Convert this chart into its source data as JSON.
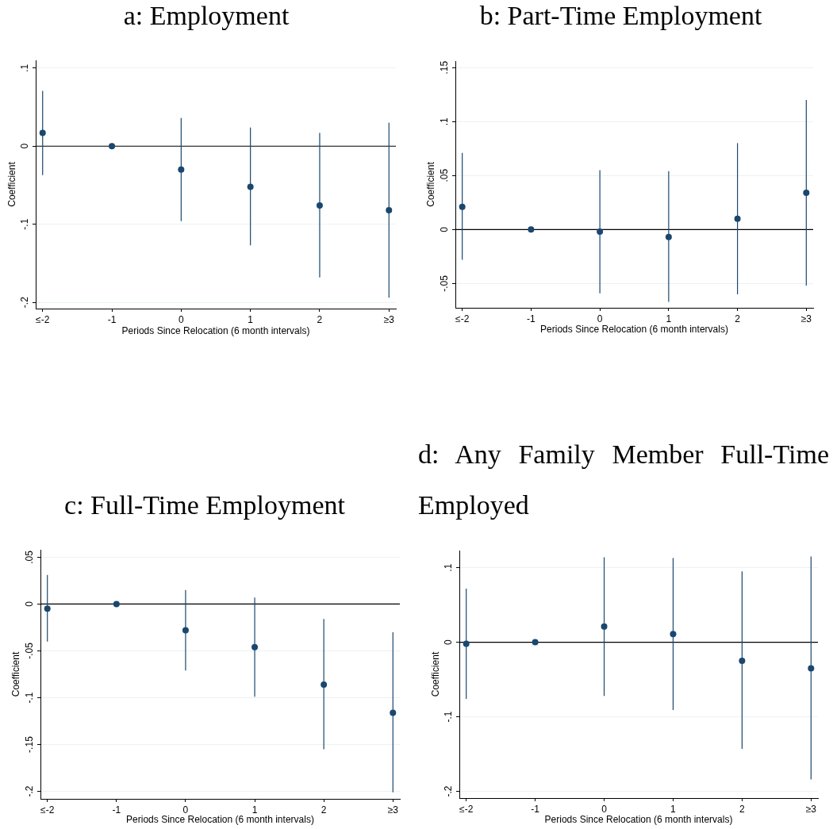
{
  "chart_data": [
    {
      "type": "scatter",
      "title": "a: Employment",
      "xlabel": "Periods Since Relocation (6 month intervals)",
      "ylabel": "Coefficient",
      "categories": [
        "≤-2",
        "-1",
        "0",
        "1",
        "2",
        "≥3"
      ],
      "values": [
        0.017,
        0,
        -0.03,
        -0.052,
        -0.076,
        -0.082
      ],
      "errors": [
        [
          -0.037,
          0.071
        ],
        null,
        [
          -0.096,
          0.036
        ],
        [
          -0.127,
          0.024
        ],
        [
          -0.168,
          0.017
        ],
        [
          -0.194,
          0.03
        ]
      ],
      "color": "#1a476f",
      "marker": "circle",
      "ylim": [
        -0.208,
        0.11
      ],
      "yticks": [
        {
          "value": -0.2,
          "label": "-.2"
        },
        {
          "value": -0.1,
          "label": "-.1"
        },
        {
          "value": 0,
          "label": "0"
        },
        {
          "value": 0.1,
          "label": ".1"
        }
      ],
      "grid": "y",
      "ref_lines": [
        {
          "axis": "y",
          "value": 0,
          "color": "#000000"
        }
      ]
    },
    {
      "type": "scatter",
      "title": "b: Part-Time Employment",
      "xlabel": "Periods Since Relocation (6 month intervals)",
      "ylabel": "Coefficient",
      "categories": [
        "≤-2",
        "-1",
        "0",
        "1",
        "2",
        "≥3"
      ],
      "values": [
        0.021,
        0,
        -0.002,
        -0.007,
        0.01,
        0.034
      ],
      "errors": [
        [
          -0.028,
          0.071
        ],
        null,
        [
          -0.059,
          0.055
        ],
        [
          -0.067,
          0.054
        ],
        [
          -0.06,
          0.08
        ],
        [
          -0.052,
          0.12
        ]
      ],
      "color": "#1a476f",
      "marker": "circle",
      "ylim": [
        -0.0725,
        0.156
      ],
      "yticks": [
        {
          "value": -0.05,
          "label": "-.05"
        },
        {
          "value": 0,
          "label": "0"
        },
        {
          "value": 0.05,
          "label": ".05"
        },
        {
          "value": 0.1,
          "label": ".1"
        },
        {
          "value": 0.15,
          "label": ".15"
        }
      ],
      "grid": "y",
      "ref_lines": [
        {
          "axis": "y",
          "value": 0,
          "color": "#000000"
        }
      ]
    },
    {
      "type": "scatter",
      "title": "c: Full-Time Employment",
      "xlabel": "Periods Since Relocation (6 month intervals)",
      "ylabel": "Coefficient",
      "categories": [
        "≤-2",
        "-1",
        "0",
        "1",
        "2",
        "≥3"
      ],
      "values": [
        -0.005,
        0,
        -0.028,
        -0.046,
        -0.086,
        -0.116
      ],
      "errors": [
        [
          -0.04,
          0.031
        ],
        null,
        [
          -0.071,
          0.015
        ],
        [
          -0.099,
          0.007
        ],
        [
          -0.155,
          -0.016
        ],
        [
          -0.201,
          -0.03
        ]
      ],
      "color": "#1a476f",
      "marker": "circle",
      "ylim": [
        -0.208,
        0.058
      ],
      "yticks": [
        {
          "value": -0.2,
          "label": "-.2"
        },
        {
          "value": -0.15,
          "label": "-.15"
        },
        {
          "value": -0.1,
          "label": "-.1"
        },
        {
          "value": -0.05,
          "label": "-.05"
        },
        {
          "value": 0,
          "label": "0"
        },
        {
          "value": 0.05,
          "label": ".05"
        }
      ],
      "grid": "y",
      "ref_lines": [
        {
          "axis": "y",
          "value": 0,
          "color": "#000000"
        }
      ]
    },
    {
      "type": "scatter",
      "title": "d: Any Family Member Full-Time Employed",
      "xlabel": "Periods Since Relocation (6 month intervals)",
      "ylabel": "Coefficient",
      "categories": [
        "≤-2",
        "-1",
        "0",
        "1",
        "2",
        "≥3"
      ],
      "values": [
        -0.002,
        0,
        0.021,
        0.011,
        -0.025,
        -0.035
      ],
      "errors": [
        [
          -0.076,
          0.072
        ],
        null,
        [
          -0.072,
          0.114
        ],
        [
          -0.091,
          0.113
        ],
        [
          -0.143,
          0.095
        ],
        [
          -0.184,
          0.115
        ]
      ],
      "color": "#1a476f",
      "marker": "circle",
      "ylim": [
        -0.209,
        0.123
      ],
      "yticks": [
        {
          "value": -0.2,
          "label": "-.2"
        },
        {
          "value": -0.1,
          "label": "-.1"
        },
        {
          "value": 0,
          "label": "0"
        },
        {
          "value": 0.1,
          "label": ".1"
        }
      ],
      "grid": "y",
      "ref_lines": [
        {
          "axis": "y",
          "value": 0,
          "color": "#000000"
        }
      ]
    }
  ]
}
